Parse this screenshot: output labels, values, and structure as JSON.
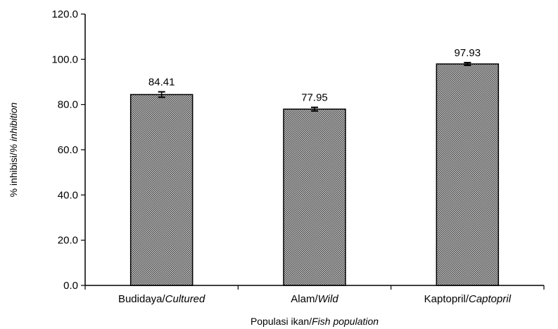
{
  "chart_data": {
    "type": "bar",
    "categories": [
      {
        "main": "Budidaya/",
        "italic": "Cultured"
      },
      {
        "main": "Alam/",
        "italic": "Wild"
      },
      {
        "main": "Kaptopril/",
        "italic": "Captopril"
      }
    ],
    "values": [
      84.41,
      77.95,
      97.93
    ],
    "value_labels": [
      "84.41",
      "77.95",
      "97.93"
    ],
    "error": [
      1.2,
      0.8,
      0.6
    ],
    "ylim": [
      0,
      120
    ],
    "yticks": [
      "0.0",
      "20.0",
      "40.0",
      "60.0",
      "80.0",
      "100.0",
      "120.0"
    ],
    "xlabel": {
      "main": "Populasi ikan/",
      "italic": "Fish population"
    },
    "ylabel": {
      "main": "% inhibisi/",
      "italic": "% inhibition"
    },
    "bar_fill": "crosshatch-gray",
    "grid": false,
    "legend": "none"
  }
}
